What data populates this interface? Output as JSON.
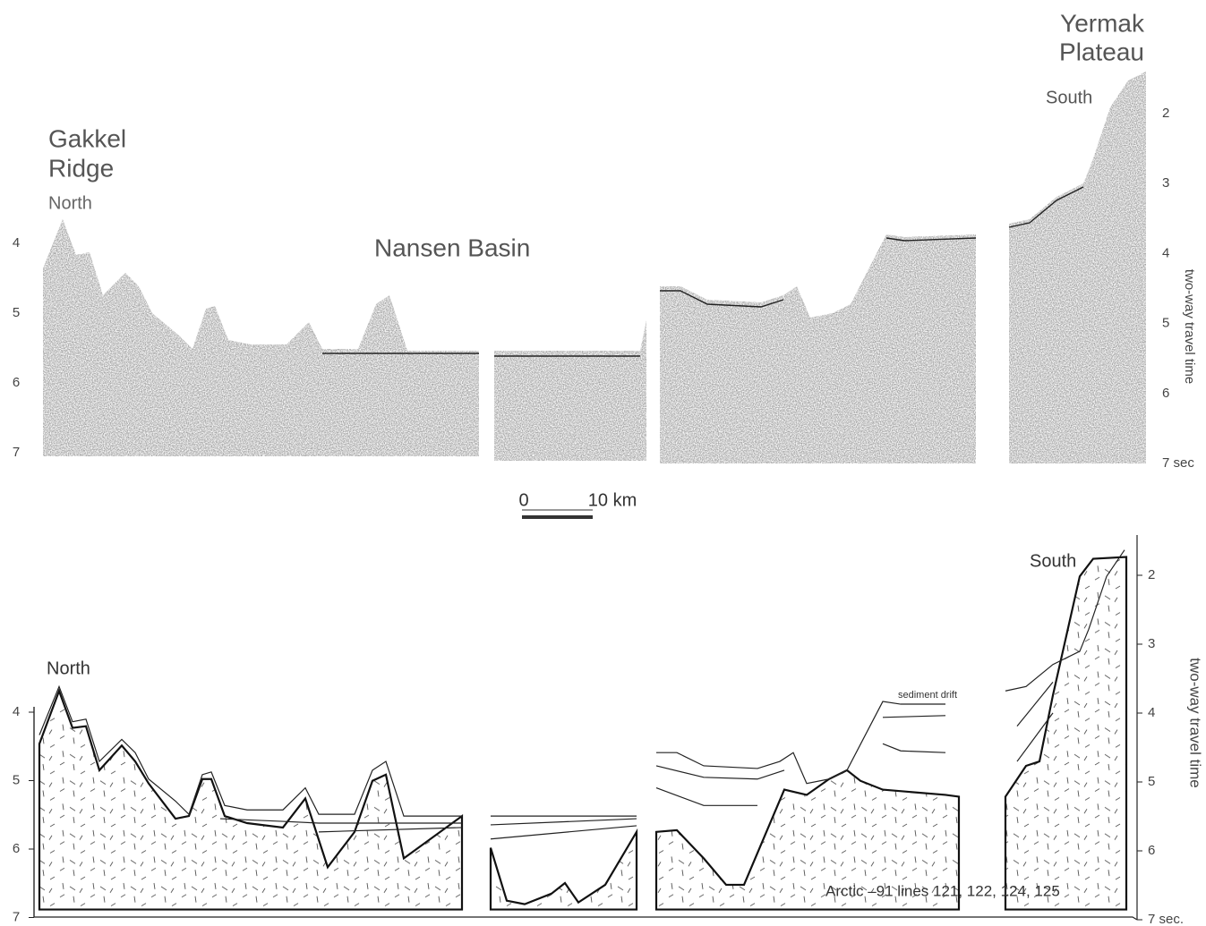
{
  "top_panel": {
    "labels": {
      "gakkel_ridge": [
        "Gakkel",
        "Ridge"
      ],
      "north": "North",
      "nansen_basin": "Nansen Basin",
      "yermak_plateau": [
        "Yermak",
        "Plateau"
      ],
      "south": "South"
    },
    "left_axis": {
      "ticks": [
        4,
        5,
        6,
        7
      ]
    },
    "right_axis": {
      "title": "two-way travel time",
      "ticks": [
        2,
        3,
        4,
        5,
        6,
        {
          "value": 7,
          "label": "7 sec"
        }
      ]
    }
  },
  "scale_bar": {
    "start": "0",
    "end": "10 km"
  },
  "bottom_panel": {
    "labels": {
      "north": "North",
      "south": "South",
      "sediment_drift": "sediment drift",
      "caption": "Arctic –91 lines 121, 122, 124, 125"
    },
    "left_axis": {
      "ticks": [
        4,
        5,
        6,
        7
      ]
    },
    "right_axis": {
      "title": "two-way travel time",
      "ticks": [
        2,
        3,
        4,
        5,
        6,
        {
          "value": 7,
          "label": "7 sec."
        }
      ]
    }
  }
}
